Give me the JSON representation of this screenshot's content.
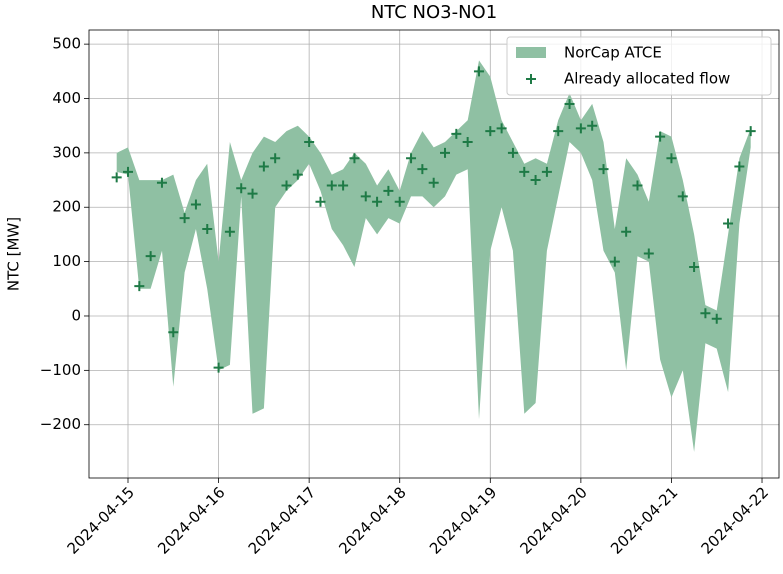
{
  "chart_data": {
    "type": "area",
    "title": "NTC NO3-NO1",
    "y_label": "NTC [MW]",
    "x": [
      "2024-04-14 21:00",
      "2024-04-15 00:00",
      "2024-04-15 03:00",
      "2024-04-15 06:00",
      "2024-04-15 09:00",
      "2024-04-15 12:00",
      "2024-04-15 15:00",
      "2024-04-15 18:00",
      "2024-04-15 21:00",
      "2024-04-16 00:00",
      "2024-04-16 03:00",
      "2024-04-16 06:00",
      "2024-04-16 09:00",
      "2024-04-16 12:00",
      "2024-04-16 15:00",
      "2024-04-16 18:00",
      "2024-04-16 21:00",
      "2024-04-17 00:00",
      "2024-04-17 03:00",
      "2024-04-17 06:00",
      "2024-04-17 09:00",
      "2024-04-17 12:00",
      "2024-04-17 15:00",
      "2024-04-17 18:00",
      "2024-04-17 21:00",
      "2024-04-18 00:00",
      "2024-04-18 03:00",
      "2024-04-18 06:00",
      "2024-04-18 09:00",
      "2024-04-18 12:00",
      "2024-04-18 15:00",
      "2024-04-18 18:00",
      "2024-04-18 21:00",
      "2024-04-19 00:00",
      "2024-04-19 03:00",
      "2024-04-19 06:00",
      "2024-04-19 09:00",
      "2024-04-19 12:00",
      "2024-04-19 15:00",
      "2024-04-19 18:00",
      "2024-04-19 21:00",
      "2024-04-20 00:00",
      "2024-04-20 03:00",
      "2024-04-20 06:00",
      "2024-04-20 09:00",
      "2024-04-20 12:00",
      "2024-04-20 15:00",
      "2024-04-20 18:00",
      "2024-04-20 21:00",
      "2024-04-21 00:00",
      "2024-04-21 03:00",
      "2024-04-21 06:00",
      "2024-04-21 09:00",
      "2024-04-21 12:00",
      "2024-04-21 15:00",
      "2024-04-21 18:00",
      "2024-04-21 21:00"
    ],
    "series": [
      {
        "name": "NorCap ATCE",
        "type": "band",
        "color": "#8fc0a3",
        "upper": [
          300,
          310,
          250,
          250,
          250,
          260,
          190,
          250,
          280,
          100,
          320,
          250,
          300,
          330,
          320,
          340,
          350,
          330,
          300,
          260,
          270,
          300,
          280,
          240,
          270,
          230,
          300,
          340,
          310,
          320,
          340,
          360,
          470,
          440,
          360,
          320,
          280,
          290,
          280,
          360,
          410,
          360,
          390,
          320,
          160,
          290,
          260,
          210,
          340,
          330,
          250,
          150,
          20,
          10,
          150,
          290,
          345
        ],
        "lower": [
          265,
          260,
          50,
          50,
          120,
          -130,
          80,
          160,
          50,
          -100,
          -90,
          220,
          -180,
          -170,
          200,
          230,
          250,
          280,
          230,
          160,
          130,
          90,
          180,
          150,
          180,
          170,
          220,
          220,
          200,
          220,
          260,
          270,
          -190,
          120,
          200,
          120,
          -180,
          -160,
          120,
          220,
          320,
          300,
          250,
          120,
          80,
          -100,
          110,
          100,
          -80,
          -150,
          -100,
          -250,
          -50,
          -60,
          -140,
          170,
          310
        ]
      },
      {
        "name": "Already allocated flow",
        "type": "scatter",
        "color": "#1e7a46",
        "values": [
          255,
          265,
          55,
          110,
          245,
          -30,
          180,
          205,
          160,
          -95,
          155,
          235,
          225,
          275,
          290,
          240,
          260,
          320,
          210,
          240,
          240,
          290,
          220,
          210,
          230,
          210,
          290,
          270,
          245,
          300,
          335,
          320,
          450,
          340,
          345,
          300,
          265,
          250,
          265,
          340,
          390,
          345,
          350,
          270,
          100,
          155,
          240,
          115,
          330,
          290,
          220,
          90,
          5,
          -5,
          170,
          275,
          340
        ]
      }
    ],
    "xlim": [
      "2024-04-14 13:40",
      "2024-04-22 04:30"
    ],
    "xticks": [
      "2024-04-15",
      "2024-04-16",
      "2024-04-17",
      "2024-04-18",
      "2024-04-19",
      "2024-04-20",
      "2024-04-21",
      "2024-04-22"
    ],
    "ylim": [
      -298,
      526
    ],
    "yticks": [
      {
        "value": -200,
        "label": "−200"
      },
      {
        "value": -100,
        "label": "−100"
      },
      0,
      100,
      200,
      300,
      400,
      500
    ],
    "grid": true,
    "legend": "upper right"
  }
}
